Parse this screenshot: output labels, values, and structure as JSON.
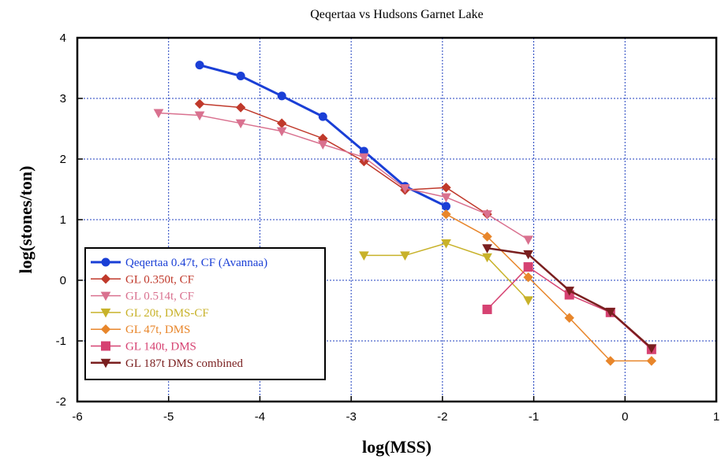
{
  "chart_data": {
    "type": "line",
    "title": "Qeqertaa vs Hudsons Garnet Lake",
    "xlabel": "log(MSS)",
    "ylabel": "log(stones/ton)",
    "xlim": [
      -6,
      1
    ],
    "ylim": [
      -2,
      4
    ],
    "xticks": [
      "-6",
      "-5",
      "-4",
      "-3",
      "-2",
      "-1",
      "0",
      "1"
    ],
    "yticks": [
      "-2",
      "-1",
      "0",
      "1",
      "2",
      "3",
      "4"
    ],
    "grid": true,
    "legend_position": "left",
    "series": [
      {
        "name": "Qeqertaa 0.47t, CF (Avannaa)",
        "color": "#1a3fd6",
        "marker": "circle",
        "width": 3,
        "x": [
          -4.66,
          -4.21,
          -3.76,
          -3.31,
          -2.86,
          -2.41,
          -1.96
        ],
        "y": [
          3.55,
          3.37,
          3.04,
          2.7,
          2.13,
          1.55,
          1.22
        ]
      },
      {
        "name": "GL 0.350t, CF",
        "color": "#c0392b",
        "marker": "diamond",
        "width": 1.5,
        "x": [
          -4.66,
          -4.21,
          -3.76,
          -3.31,
          -2.86,
          -2.41,
          -1.96,
          -1.51
        ],
        "y": [
          2.91,
          2.85,
          2.59,
          2.34,
          1.96,
          1.49,
          1.53,
          1.09
        ]
      },
      {
        "name": "GL 0.514t, CF",
        "color": "#d9718f",
        "marker": "triangle-down",
        "width": 1.5,
        "x": [
          -5.11,
          -4.66,
          -4.21,
          -3.76,
          -3.31,
          -2.86,
          -2.41,
          -1.96,
          -1.51,
          -1.06
        ],
        "y": [
          2.76,
          2.72,
          2.59,
          2.46,
          2.24,
          2.03,
          1.52,
          1.37,
          1.09,
          0.67
        ]
      },
      {
        "name": "GL 20t, DMS-CF",
        "color": "#c8b22a",
        "marker": "triangle-down",
        "width": 1.5,
        "x": [
          -2.86,
          -2.41,
          -1.96,
          -1.51,
          -1.06
        ],
        "y": [
          0.41,
          0.41,
          0.61,
          0.38,
          -0.33
        ]
      },
      {
        "name": "GL 47t, DMS",
        "color": "#e8862b",
        "marker": "diamond",
        "width": 1.5,
        "x": [
          -1.96,
          -1.51,
          -1.06,
          -0.61,
          -0.16,
          0.29
        ],
        "y": [
          1.09,
          0.72,
          0.05,
          -0.62,
          -1.33,
          -1.33
        ]
      },
      {
        "name": "GL 140t, DMS",
        "color": "#d64272",
        "marker": "square",
        "width": 1.5,
        "x": [
          -1.51,
          -1.06,
          -0.61,
          -0.16,
          0.29
        ],
        "y": [
          -0.48,
          0.22,
          -0.24,
          -0.53,
          -1.14
        ]
      },
      {
        "name": "GL 187t DMS combined",
        "color": "#7a1f1f",
        "marker": "triangle-down",
        "width": 2.5,
        "x": [
          -1.51,
          -1.06,
          -0.61,
          -0.16,
          0.29
        ],
        "y": [
          0.53,
          0.43,
          -0.17,
          -0.52,
          -1.12
        ]
      }
    ]
  }
}
